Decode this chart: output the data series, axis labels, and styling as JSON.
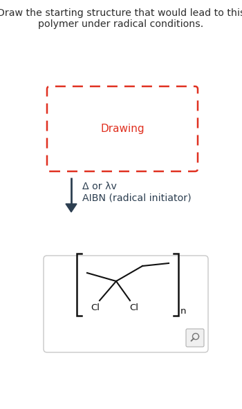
{
  "title_line1": "Draw the starting structure that would lead to this",
  "title_line2": "polymer under radical conditions.",
  "drawing_label": "Drawing",
  "arrow_label1": "Δ or λv",
  "arrow_label2": "AIBN (radical initiator)",
  "subscript_n": "n",
  "cl_label": "Cl",
  "background_color": "#ffffff",
  "title_color": "#2d2d2d",
  "drawing_color": "#e03020",
  "arrow_color": "#2c3e50",
  "polymer_box_edge": "#c8c8c8",
  "polymer_line_color": "#111111"
}
